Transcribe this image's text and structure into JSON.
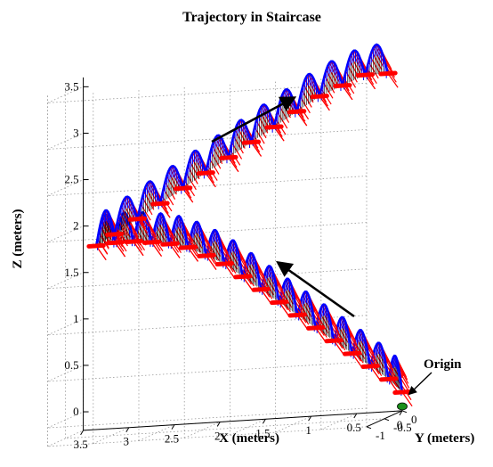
{
  "chart_data": {
    "type": "line",
    "title": "Trajectory in Staircase",
    "xlabel": "X (meters)",
    "ylabel": "Y (meters)",
    "zlabel": "Z (meters)",
    "xlim": [
      0,
      3.5
    ],
    "ylim": [
      -1,
      0
    ],
    "zlim": [
      -0.2,
      3.6
    ],
    "x_ticks": [
      "3.5",
      "3",
      "2.5",
      "2",
      "1.5",
      "1",
      "0.5",
      "0"
    ],
    "y_ticks": [
      "-1",
      "-0.5",
      "0"
    ],
    "z_ticks": [
      "0",
      "0.5",
      "1",
      "1.5",
      "2",
      "2.5",
      "3",
      "3.5"
    ],
    "grid": true,
    "series": [
      {
        "color": "#ff0000",
        "role": "foot trajectory (ground level markers)",
        "x": [
          0.0,
          0.15,
          0.35,
          0.55,
          0.75,
          0.95,
          1.15,
          1.35,
          1.55,
          1.75,
          1.95,
          2.15,
          2.35,
          2.55,
          2.75,
          2.95,
          3.15,
          3.3,
          3.0,
          2.75,
          2.5,
          2.25,
          2.0,
          1.75,
          1.5,
          1.25,
          1.0,
          0.75,
          0.5,
          0.25,
          0.0
        ],
        "y": [
          0.0,
          0.0,
          0.0,
          0.0,
          0.0,
          0.0,
          0.0,
          0.0,
          0.0,
          0.0,
          0.0,
          0.0,
          0.0,
          0.0,
          0.0,
          0.0,
          0.0,
          -0.15,
          -0.4,
          -0.4,
          -0.4,
          -0.4,
          -0.4,
          -0.4,
          -0.4,
          -0.4,
          -0.4,
          -0.4,
          -0.4,
          -0.4,
          -0.4
        ],
        "z": [
          0.0,
          0.15,
          0.3,
          0.45,
          0.6,
          0.75,
          0.9,
          1.05,
          1.2,
          1.35,
          1.5,
          1.6,
          1.7,
          1.75,
          1.78,
          1.8,
          1.8,
          1.8,
          1.95,
          2.1,
          2.25,
          2.4,
          2.55,
          2.7,
          2.85,
          3.0,
          3.15,
          3.3,
          3.4,
          3.5,
          3.5
        ]
      }
    ],
    "markers": [
      {
        "x": 0.0,
        "y": 0.0,
        "z": 0.0,
        "color": "#1a8f1a"
      }
    ],
    "colors": {
      "swing_arc": "#0000ff",
      "swing_fill": "#000000",
      "stance": "#ff0000",
      "origin_marker": "#1a8f1a",
      "arrow": "#000000"
    },
    "annotations": [
      {
        "text": "Origin"
      }
    ],
    "direction_arrows": 2
  }
}
